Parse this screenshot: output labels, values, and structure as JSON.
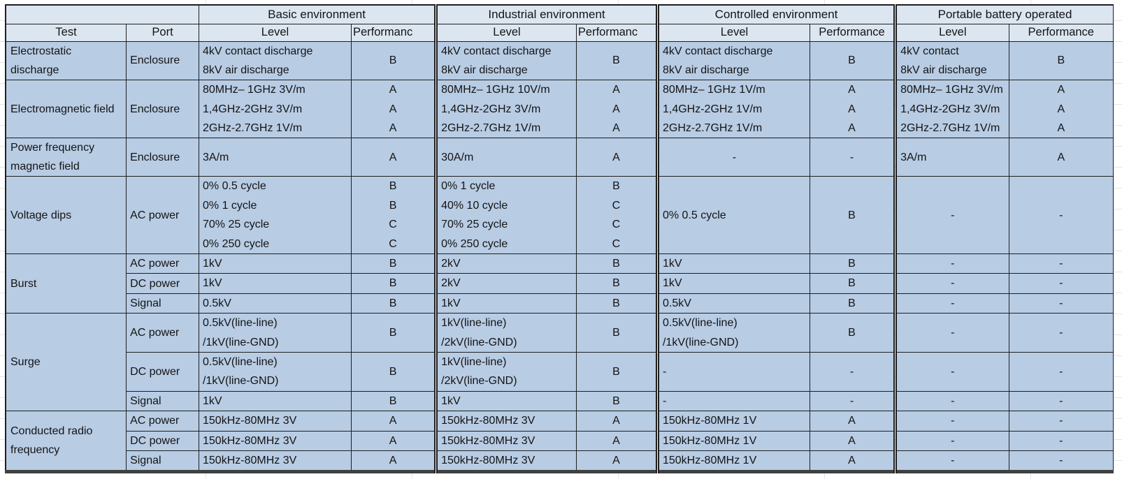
{
  "col_headers": {
    "test": "Test",
    "port": "Port",
    "level": "Level"
  },
  "env_groups": [
    {
      "name": "Basic environment",
      "perf_header": "Performanc"
    },
    {
      "name": "Industrial environment",
      "perf_header": "Performanc"
    },
    {
      "name": "Controlled environment",
      "perf_header": "Performance"
    },
    {
      "name": "Portable battery operated",
      "perf_header": "Performance"
    }
  ],
  "colors": {
    "header_bg": "#dce6f1",
    "cell_bg": "#b8cce4",
    "border": "#1f1f1f"
  },
  "groups": [
    {
      "test": "Electrostatic discharge",
      "rows": [
        {
          "port": "Enclosure",
          "envs": [
            {
              "level": [
                "4kV contact discharge",
                "8kV air discharge"
              ],
              "perf": [
                "B"
              ]
            },
            {
              "level": [
                "4kV contact discharge",
                "8kV air discharge"
              ],
              "perf": [
                "B"
              ]
            },
            {
              "level": [
                "4kV contact discharge",
                "8kV air discharge"
              ],
              "perf": [
                "B"
              ]
            },
            {
              "level": [
                "4kV contact",
                "8kV air discharge"
              ],
              "perf": [
                "B"
              ]
            }
          ]
        }
      ]
    },
    {
      "test": "Electromagnetic field",
      "rows": [
        {
          "port": "Enclosure",
          "envs": [
            {
              "level": [
                "80MHz– 1GHz 3V/m",
                "1,4GHz-2GHz 3V/m",
                "2GHz-2.7GHz 1V/m"
              ],
              "perf": [
                "A",
                "A",
                "A"
              ]
            },
            {
              "level": [
                "80MHz– 1GHz 10V/m",
                "1,4GHz-2GHz 3V/m",
                "2GHz-2.7GHz 1V/m"
              ],
              "perf": [
                "A",
                "A",
                "A"
              ]
            },
            {
              "level": [
                "80MHz– 1GHz 1V/m",
                "1,4GHz-2GHz 1V/m",
                "2GHz-2.7GHz 1V/m"
              ],
              "perf": [
                "A",
                "A",
                "A"
              ]
            },
            {
              "level": [
                "80MHz– 1GHz 3V/m",
                "1,4GHz-2GHz 3V/m",
                "2GHz-2.7GHz 1V/m"
              ],
              "perf": [
                "A",
                "A",
                "A"
              ]
            }
          ]
        }
      ]
    },
    {
      "test": "Power frequency magnetic field",
      "rows": [
        {
          "port": "Enclosure",
          "envs": [
            {
              "level": [
                "3A/m"
              ],
              "perf": [
                "A"
              ]
            },
            {
              "level": [
                "30A/m"
              ],
              "perf": [
                "A"
              ]
            },
            {
              "level": [
                "-"
              ],
              "align": "center",
              "perf": [
                "-"
              ]
            },
            {
              "level": [
                "3A/m"
              ],
              "perf": [
                "A"
              ]
            }
          ]
        }
      ]
    },
    {
      "test": "Voltage dips",
      "rows": [
        {
          "port": "AC power",
          "envs": [
            {
              "level": [
                "0% 0.5 cycle",
                "0% 1 cycle",
                "70% 25 cycle",
                "0% 250 cycle"
              ],
              "perf": [
                "B",
                "B",
                "C",
                "C"
              ]
            },
            {
              "level": [
                "0% 1 cycle",
                "40% 10 cycle",
                "70% 25 cycle",
                "0% 250 cycle"
              ],
              "perf": [
                "B",
                "C",
                "C",
                "C"
              ]
            },
            {
              "level": [
                "0% 0.5 cycle"
              ],
              "perf": [
                "B"
              ]
            },
            {
              "level": [
                "-"
              ],
              "align": "center",
              "perf": [
                "-"
              ]
            }
          ]
        }
      ]
    },
    {
      "test": "Burst",
      "rows": [
        {
          "port": "AC power",
          "envs": [
            {
              "level": [
                "1kV"
              ],
              "perf": [
                "B"
              ]
            },
            {
              "level": [
                "2kV"
              ],
              "perf": [
                "B"
              ]
            },
            {
              "level": [
                "1kV"
              ],
              "perf": [
                "B"
              ]
            },
            {
              "level": [
                "-"
              ],
              "align": "center",
              "perf": [
                "-"
              ]
            }
          ]
        },
        {
          "port": "DC power",
          "envs": [
            {
              "level": [
                "1kV"
              ],
              "perf": [
                "B"
              ]
            },
            {
              "level": [
                "2kV"
              ],
              "perf": [
                "B"
              ]
            },
            {
              "level": [
                "1kV"
              ],
              "perf": [
                "B"
              ]
            },
            {
              "level": [
                "-"
              ],
              "align": "center",
              "perf": [
                "-"
              ]
            }
          ]
        },
        {
          "port": "Signal",
          "envs": [
            {
              "level": [
                "0.5kV"
              ],
              "perf": [
                "B"
              ]
            },
            {
              "level": [
                "1kV"
              ],
              "perf": [
                "B"
              ]
            },
            {
              "level": [
                "0.5kV"
              ],
              "perf": [
                "B"
              ]
            },
            {
              "level": [
                "-"
              ],
              "align": "center",
              "perf": [
                "-"
              ]
            }
          ]
        }
      ]
    },
    {
      "test": "Surge",
      "rows": [
        {
          "port": "AC power",
          "envs": [
            {
              "level": [
                "0.5kV(line-line)",
                "/1kV(line-GND)"
              ],
              "perf": [
                "B"
              ]
            },
            {
              "level": [
                "1kV(line-line)",
                "/2kV(line-GND)"
              ],
              "perf": [
                "B"
              ]
            },
            {
              "level": [
                "0.5kV(line-line)",
                "/1kV(line-GND)"
              ],
              "perf": [
                "B"
              ]
            },
            {
              "level": [
                "-"
              ],
              "align": "center",
              "perf": [
                "-"
              ]
            }
          ]
        },
        {
          "port": "DC power",
          "envs": [
            {
              "level": [
                "0.5kV(line-line)",
                "/1kV(line-GND)"
              ],
              "perf": [
                "B"
              ]
            },
            {
              "level": [
                "1kV(line-line)",
                "/2kV(line-GND)"
              ],
              "perf": [
                "B"
              ]
            },
            {
              "level": [
                "-"
              ],
              "perf": [
                "-"
              ]
            },
            {
              "level": [
                "-"
              ],
              "align": "center",
              "perf": [
                "-"
              ]
            }
          ]
        },
        {
          "port": "Signal",
          "envs": [
            {
              "level": [
                "1kV"
              ],
              "perf": [
                "B"
              ]
            },
            {
              "level": [
                "1kV"
              ],
              "perf": [
                "B"
              ]
            },
            {
              "level": [
                "-"
              ],
              "perf": [
                "-"
              ]
            },
            {
              "level": [
                "-"
              ],
              "align": "center",
              "perf": [
                "-"
              ]
            }
          ]
        }
      ]
    },
    {
      "test": "Conducted radio frequency",
      "rows": [
        {
          "port": "AC power",
          "envs": [
            {
              "level": [
                "150kHz-80MHz 3V"
              ],
              "perf": [
                "A"
              ]
            },
            {
              "level": [
                "150kHz-80MHz 3V"
              ],
              "perf": [
                "A"
              ]
            },
            {
              "level": [
                "150kHz-80MHz 1V"
              ],
              "perf": [
                "A"
              ]
            },
            {
              "level": [
                "-"
              ],
              "align": "center",
              "perf": [
                "-"
              ]
            }
          ]
        },
        {
          "port": "DC power",
          "envs": [
            {
              "level": [
                "150kHz-80MHz 3V"
              ],
              "perf": [
                "A"
              ]
            },
            {
              "level": [
                "150kHz-80MHz 3V"
              ],
              "perf": [
                "A"
              ]
            },
            {
              "level": [
                "150kHz-80MHz 1V"
              ],
              "perf": [
                "A"
              ]
            },
            {
              "level": [
                "-"
              ],
              "align": "center",
              "perf": [
                "-"
              ]
            }
          ]
        },
        {
          "port": "Signal",
          "envs": [
            {
              "level": [
                "150kHz-80MHz 3V"
              ],
              "perf": [
                "A"
              ]
            },
            {
              "level": [
                "150kHz-80MHz 3V"
              ],
              "perf": [
                "A"
              ]
            },
            {
              "level": [
                "150kHz-80MHz 1V"
              ],
              "perf": [
                "A"
              ]
            },
            {
              "level": [
                "-"
              ],
              "align": "center",
              "perf": [
                "-"
              ]
            }
          ]
        }
      ]
    }
  ]
}
